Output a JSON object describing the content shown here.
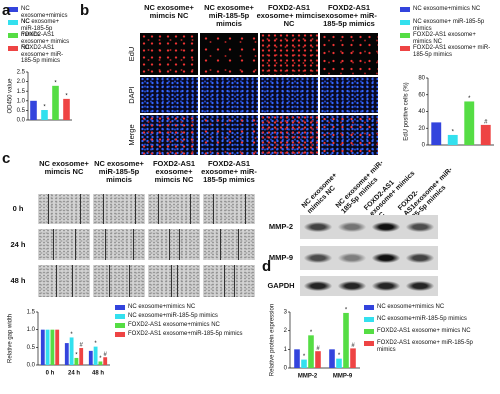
{
  "panel_labels": [
    "a",
    "b",
    "c",
    "d"
  ],
  "edu_panel": {
    "columns": [
      "NC exosome+ mimcis NC",
      "NC exosome+ miR-185-5p mimcis",
      "FOXD2-AS1 exosome+ mimcis NC",
      "FOXD2-AS1 exosome+ miR-185-5p mimics"
    ],
    "rows": [
      "EdU",
      "DAPI",
      "Merge"
    ]
  },
  "scratch_panel": {
    "columns": [
      "NC exosome+ mimcis NC",
      "NC exosome+ miR-185-5p mimcis",
      "FOXD2-AS1 exosome+ mimcis NC",
      "FOXD2-AS1 exosome+ miR-185-5p mimics"
    ],
    "rows": [
      "0 h",
      "24 h",
      "48 h"
    ]
  },
  "blot_panel": {
    "columns": [
      "NC exosome+ mimics NC",
      "NC exosome+ miR-185-5p mimics",
      "FOXD2-AS1 exosome+ mimics NC",
      "FOXD2-AS1exosome+ miR-185-5p mimics"
    ],
    "rows": [
      "MMP-2",
      "MMP-9",
      "GAPDH"
    ]
  },
  "chart_data": [
    {
      "type": "bar",
      "ylabel": "OD450 value",
      "ylim": [
        0,
        2.5
      ],
      "yticks": [
        {
          "value": 0,
          "label": "0.0"
        },
        0.5,
        {
          "value": 1,
          "label": "1.0"
        },
        1.5,
        {
          "value": 2,
          "label": "2.0"
        },
        2.5
      ],
      "series": [
        {
          "name": "NC exosome+mimics NC",
          "color": "#3344dd",
          "values": [
            1.0
          ],
          "annotations": [
            null
          ]
        },
        {
          "name": "NC exosome+ miR-185-5p mimics",
          "color": "#33e0ee",
          "values": [
            0.52
          ],
          "annotations": [
            "*"
          ]
        },
        {
          "name": "FOXD2-AS1 exosome+ mimics NC",
          "color": "#55dd44",
          "values": [
            1.78
          ],
          "annotations": [
            "*"
          ]
        },
        {
          "name": "FOXD2-AS1 exosome+ miR-185-5p mimics",
          "color": "#ee4444",
          "values": [
            1.1
          ],
          "annotations": [
            "*"
          ]
        }
      ]
    },
    {
      "type": "bar",
      "ylabel": "EdU positive cells (%)",
      "ylim": [
        0,
        80
      ],
      "yticks": [
        0,
        20,
        40,
        60,
        80
      ],
      "series": [
        {
          "name": "NC exosome+mimics NC",
          "color": "#3344dd",
          "values": [
            27
          ],
          "annotations": [
            null
          ]
        },
        {
          "name": "NC exosome+ miR-185-5p mimics",
          "color": "#33e0ee",
          "values": [
            12
          ],
          "annotations": [
            "*"
          ]
        },
        {
          "name": "FOXD2-AS1 exosome+ mimics NC",
          "color": "#55dd44",
          "values": [
            52
          ],
          "annotations": [
            "*"
          ]
        },
        {
          "name": "FOXD2-AS1 exosome+ miR-185-5p mimics",
          "color": "#ee4444",
          "values": [
            24
          ],
          "annotations": [
            "#"
          ]
        }
      ]
    },
    {
      "type": "bar",
      "ylabel": "Relative gap width",
      "ylim": [
        0,
        1.5
      ],
      "yticks": [
        {
          "value": 0,
          "label": "0.0"
        },
        0.5,
        {
          "value": 1,
          "label": "1.0"
        },
        1.5
      ],
      "categories": [
        "0 h",
        "24 h",
        "48 h"
      ],
      "series": [
        {
          "name": "NC exosome+mimics NC",
          "color": "#3344dd",
          "values": [
            1.0,
            0.62,
            0.4
          ],
          "annotations": [
            null,
            null,
            null
          ]
        },
        {
          "name": "NC exosome+miR-185-5p mimics",
          "color": "#33e0ee",
          "values": [
            1.0,
            0.78,
            0.52
          ],
          "annotations": [
            null,
            "*",
            "*"
          ]
        },
        {
          "name": "FOXD2-AS1 exosome+mimics NC",
          "color": "#55dd44",
          "values": [
            1.0,
            0.2,
            0.1
          ],
          "annotations": [
            null,
            "*",
            "*"
          ]
        },
        {
          "name": "FOXD2-AS1 exosome+miR-185-5p mimics",
          "color": "#ee4444",
          "values": [
            1.0,
            0.48,
            0.22
          ],
          "annotations": [
            null,
            "#",
            "#"
          ]
        }
      ]
    },
    {
      "type": "bar",
      "ylabel": "Relative protein expression",
      "ylim": [
        0,
        3
      ],
      "yticks": [
        0,
        1,
        2,
        3
      ],
      "categories": [
        "MMP-2",
        "MMP-9"
      ],
      "series": [
        {
          "name": "NC exosome+mimics NC",
          "color": "#3344dd",
          "values": [
            1.0,
            1.0
          ],
          "annotations": [
            null,
            null
          ]
        },
        {
          "name": "NC exosome+miR-185-5p mimics",
          "color": "#33e0ee",
          "values": [
            0.45,
            0.5
          ],
          "annotations": [
            "*",
            "*"
          ]
        },
        {
          "name": "FOXD2-AS1 exosome+ mimics NC",
          "color": "#55dd44",
          "values": [
            1.75,
            2.95
          ],
          "annotations": [
            "*",
            "*"
          ]
        },
        {
          "name": "FOXD2-AS1 exosome+ miR-185-5p mimics",
          "color": "#ee4444",
          "values": [
            0.9,
            1.05
          ],
          "annotations": [
            "#",
            "#"
          ]
        }
      ]
    }
  ]
}
